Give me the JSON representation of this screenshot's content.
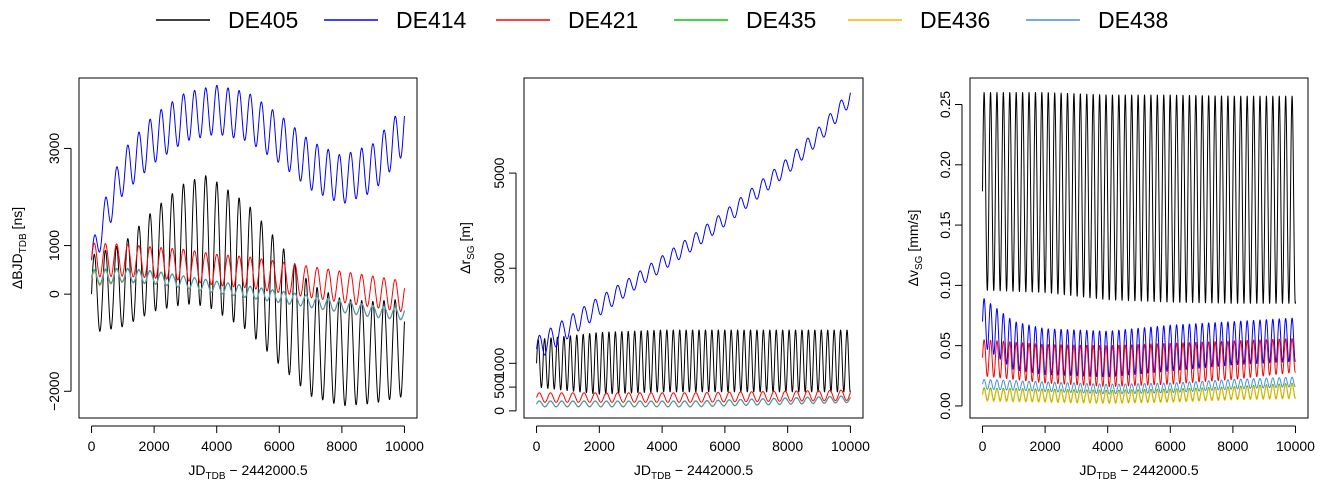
{
  "legend": {
    "entries": [
      {
        "name": "DE405",
        "color": "#000000"
      },
      {
        "name": "DE414",
        "color": "#0000FF"
      },
      {
        "name": "DE421",
        "color": "#FF0000"
      },
      {
        "name": "DE435",
        "color": "#00CC00"
      },
      {
        "name": "DE436",
        "color": "#FFB000"
      },
      {
        "name": "DE438",
        "color": "#4A90D9"
      }
    ]
  },
  "chart_data": [
    {
      "type": "line",
      "xlabel": "JD_TDB − 2442000.5",
      "ylabel": "ΔBJD_TDB [ns]",
      "xlim": [
        -400,
        10400
      ],
      "ylim": [
        -2550,
        4450
      ],
      "xticks": [
        0,
        2000,
        4000,
        6000,
        8000,
        10000
      ],
      "yticks": [
        -2000,
        0,
        1000,
        3000
      ],
      "ytick_labels": [
        "−2000",
        "0",
        "1000",
        "3000"
      ],
      "series": [
        {
          "name": "DE405",
          "x": [
            0,
            1000,
            2000,
            3000,
            3700,
            5000,
            6000,
            7000,
            8000,
            9000,
            10000
          ],
          "y": [
            0,
            180,
            700,
            1050,
            1100,
            550,
            -200,
            -950,
            -1200,
            -1200,
            -1100
          ],
          "amplitude": [
            800,
            850,
            1050,
            1250,
            1350,
            1300,
            1250,
            1150,
            1100,
            1050,
            1000
          ],
          "period": 356
        },
        {
          "name": "DE414",
          "x": [
            0,
            500,
            1000,
            2000,
            3000,
            4000,
            5000,
            6000,
            7000,
            8000,
            9000,
            10000
          ],
          "y": [
            700,
            1700,
            2500,
            3200,
            3650,
            3800,
            3650,
            3200,
            2650,
            2350,
            2600,
            3400
          ],
          "amplitude": [
            300,
            400,
            450,
            500,
            500,
            500,
            500,
            500,
            500,
            500,
            500,
            500
          ],
          "period": 356
        },
        {
          "name": "DE421",
          "x": [
            0,
            1000,
            2000,
            3000,
            4000,
            5000,
            6000,
            7000,
            8000,
            9000,
            10000
          ],
          "y": [
            700,
            700,
            650,
            600,
            500,
            450,
            350,
            250,
            150,
            50,
            -50
          ],
          "amplitude": [
            350,
            330,
            320,
            320,
            320,
            320,
            320,
            320,
            320,
            320,
            320
          ],
          "period": 356
        },
        {
          "name": "DE435",
          "x": [
            0,
            1000,
            2000,
            3000,
            4000,
            5000,
            6000,
            7000,
            8000,
            9000,
            10000
          ],
          "y": [
            350,
            400,
            350,
            250,
            150,
            50,
            -50,
            -150,
            -250,
            -350,
            -400
          ],
          "amplitude": [
            150,
            140,
            130,
            120,
            120,
            120,
            120,
            120,
            120,
            120,
            120
          ],
          "period": 356
        },
        {
          "name": "DE436",
          "x": [
            0,
            1000,
            2000,
            3000,
            4000,
            5000,
            6000,
            7000,
            8000,
            9000,
            10000
          ],
          "y": [
            300,
            380,
            330,
            240,
            140,
            40,
            -60,
            -160,
            -260,
            -360,
            -420
          ],
          "amplitude": [
            150,
            140,
            130,
            120,
            120,
            120,
            120,
            120,
            120,
            120,
            120
          ],
          "period": 356
        },
        {
          "name": "DE438",
          "x": [
            0,
            1000,
            2000,
            3000,
            4000,
            5000,
            6000,
            7000,
            8000,
            9000,
            10000
          ],
          "y": [
            330,
            390,
            340,
            245,
            145,
            45,
            -55,
            -155,
            -255,
            -355,
            -410
          ],
          "amplitude": [
            150,
            140,
            130,
            120,
            120,
            120,
            120,
            120,
            120,
            120,
            120
          ],
          "period": 356
        }
      ]
    },
    {
      "type": "line",
      "xlabel": "JD_TDB − 2442000.5",
      "ylabel": "Δr_SG [m]",
      "xlim": [
        -400,
        10400
      ],
      "ylim": [
        -150,
        7000
      ],
      "xticks": [
        0,
        2000,
        4000,
        6000,
        8000,
        10000
      ],
      "yticks": [
        0,
        500,
        1000,
        3000,
        5000
      ],
      "ytick_labels": [
        "0",
        "500",
        "1000",
        "3000",
        "5000"
      ],
      "series": [
        {
          "name": "DE405",
          "x": [
            0,
            2000,
            4000,
            6000,
            8000,
            10000
          ],
          "y": [
            1000,
            1000,
            1050,
            1050,
            1050,
            1050
          ],
          "amplitude": [
            500,
            650,
            650,
            650,
            650,
            650
          ],
          "period": 205
        },
        {
          "name": "DE414",
          "x": [
            0,
            2000,
            3000,
            4000,
            5000,
            6000,
            7000,
            8000,
            9000,
            10000
          ],
          "y": [
            1300,
            2200,
            2650,
            3100,
            3550,
            4050,
            4600,
            5150,
            5800,
            6600
          ],
          "amplitude": [
            250,
            200,
            160,
            160,
            160,
            160,
            160,
            170,
            170,
            170
          ],
          "period": 356
        },
        {
          "name": "DE421",
          "x": [
            0,
            5000,
            10000
          ],
          "y": [
            280,
            280,
            330
          ],
          "amplitude": [
            100,
            100,
            110
          ],
          "period": 356
        },
        {
          "name": "DE435",
          "x": [
            0,
            5000,
            10000
          ],
          "y": [
            150,
            150,
            250
          ],
          "amplitude": [
            60,
            60,
            70
          ],
          "period": 356
        },
        {
          "name": "DE436",
          "x": [
            0,
            5000,
            10000
          ],
          "y": [
            140,
            140,
            240
          ],
          "amplitude": [
            60,
            60,
            70
          ],
          "period": 356
        },
        {
          "name": "DE438",
          "x": [
            0,
            5000,
            10000
          ],
          "y": [
            145,
            145,
            245
          ],
          "amplitude": [
            60,
            60,
            70
          ],
          "period": 356
        }
      ]
    },
    {
      "type": "line",
      "xlabel": "JD_TDB − 2442000.5",
      "ylabel": "Δv_SG [mm/s]",
      "xlim": [
        -400,
        10400
      ],
      "ylim": [
        -0.01,
        0.272
      ],
      "xticks": [
        0,
        2000,
        4000,
        6000,
        8000,
        10000
      ],
      "yticks": [
        0.0,
        0.05,
        0.1,
        0.15,
        0.2,
        0.25
      ],
      "ytick_labels": [
        "0.00",
        "0.05",
        "0.10",
        "0.15",
        "0.20",
        "0.25"
      ],
      "series": [
        {
          "name": "DE405",
          "x": [
            0,
            2000,
            4000,
            6000,
            8000,
            10000
          ],
          "y": [
            0.178,
            0.177,
            0.173,
            0.172,
            0.171,
            0.171
          ],
          "amplitude": [
            0.082,
            0.083,
            0.085,
            0.086,
            0.086,
            0.086
          ],
          "period": 205
        },
        {
          "name": "DE414",
          "x": [
            0,
            1000,
            2000,
            4000,
            6000,
            8000,
            10000
          ],
          "y": [
            0.07,
            0.05,
            0.045,
            0.043,
            0.048,
            0.052,
            0.055
          ],
          "amplitude": [
            0.02,
            0.02,
            0.019,
            0.019,
            0.019,
            0.018,
            0.018
          ],
          "period": 205
        },
        {
          "name": "DE421",
          "x": [
            0,
            2000,
            4000,
            6000,
            8000,
            10000
          ],
          "y": [
            0.04,
            0.035,
            0.033,
            0.035,
            0.038,
            0.042
          ],
          "amplitude": [
            0.015,
            0.016,
            0.017,
            0.017,
            0.016,
            0.014
          ],
          "period": 205
        },
        {
          "name": "DE435",
          "x": [
            0,
            2000,
            4000,
            6000,
            8000,
            10000
          ],
          "y": [
            0.01,
            0.009,
            0.008,
            0.009,
            0.011,
            0.013
          ],
          "amplitude": [
            0.005,
            0.005,
            0.005,
            0.005,
            0.005,
            0.006
          ],
          "period": 205
        },
        {
          "name": "DE436",
          "x": [
            0,
            2000,
            4000,
            6000,
            8000,
            10000
          ],
          "y": [
            0.009,
            0.008,
            0.007,
            0.008,
            0.01,
            0.012
          ],
          "amplitude": [
            0.005,
            0.005,
            0.005,
            0.005,
            0.005,
            0.006
          ],
          "period": 205
        },
        {
          "name": "DE438",
          "x": [
            0,
            2000,
            4000,
            6000,
            8000,
            10000
          ],
          "y": [
            0.018,
            0.016,
            0.014,
            0.015,
            0.018,
            0.02
          ],
          "amplitude": [
            0.004,
            0.004,
            0.004,
            0.004,
            0.004,
            0.004
          ],
          "period": 205
        }
      ]
    }
  ]
}
